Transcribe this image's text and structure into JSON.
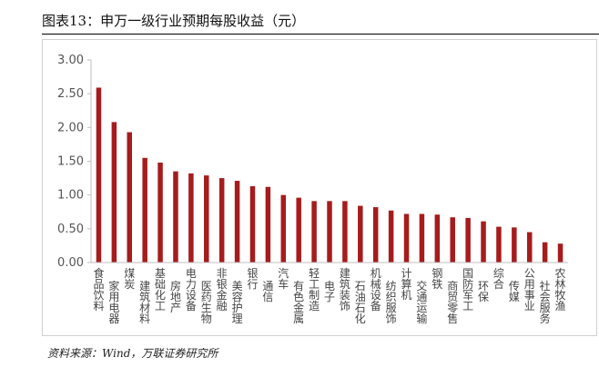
{
  "header": {
    "title": "图表13：申万一级行业预期每股收益（元）"
  },
  "footer": {
    "source": "资料来源：Wind，万联证券研究所"
  },
  "colors": {
    "bar": "#a61c1c",
    "axis": "#bfbfbf"
  },
  "chart_data": {
    "type": "bar",
    "title": "图表13：申万一级行业预期每股收益（元）",
    "xlabel": "",
    "ylabel": "",
    "ylim": [
      0,
      3
    ],
    "yticks": [
      "0.00",
      "0.50",
      "1.00",
      "1.50",
      "2.00",
      "2.50",
      "3.00"
    ],
    "grid": false,
    "categories": [
      "食品饮料",
      "家用电器",
      "煤炭",
      "建筑材料",
      "基础化工",
      "房地产",
      "电力设备",
      "医药生物",
      "非银金融",
      "美容护理",
      "银行",
      "通信",
      "汽车",
      "有色金属",
      "轻工制造",
      "电子",
      "建筑装饰",
      "石油石化",
      "机械设备",
      "纺织服饰",
      "计算机",
      "交通运输",
      "钢铁",
      "商贸零售",
      "国防军工",
      "环保",
      "综合",
      "传媒",
      "公用事业",
      "社会服务",
      "农林牧渔"
    ],
    "values": [
      2.59,
      2.08,
      1.93,
      1.55,
      1.48,
      1.35,
      1.32,
      1.29,
      1.25,
      1.21,
      1.13,
      1.12,
      1.0,
      0.96,
      0.91,
      0.91,
      0.91,
      0.84,
      0.82,
      0.77,
      0.72,
      0.72,
      0.71,
      0.67,
      0.66,
      0.61,
      0.53,
      0.52,
      0.45,
      0.3,
      0.28
    ]
  }
}
